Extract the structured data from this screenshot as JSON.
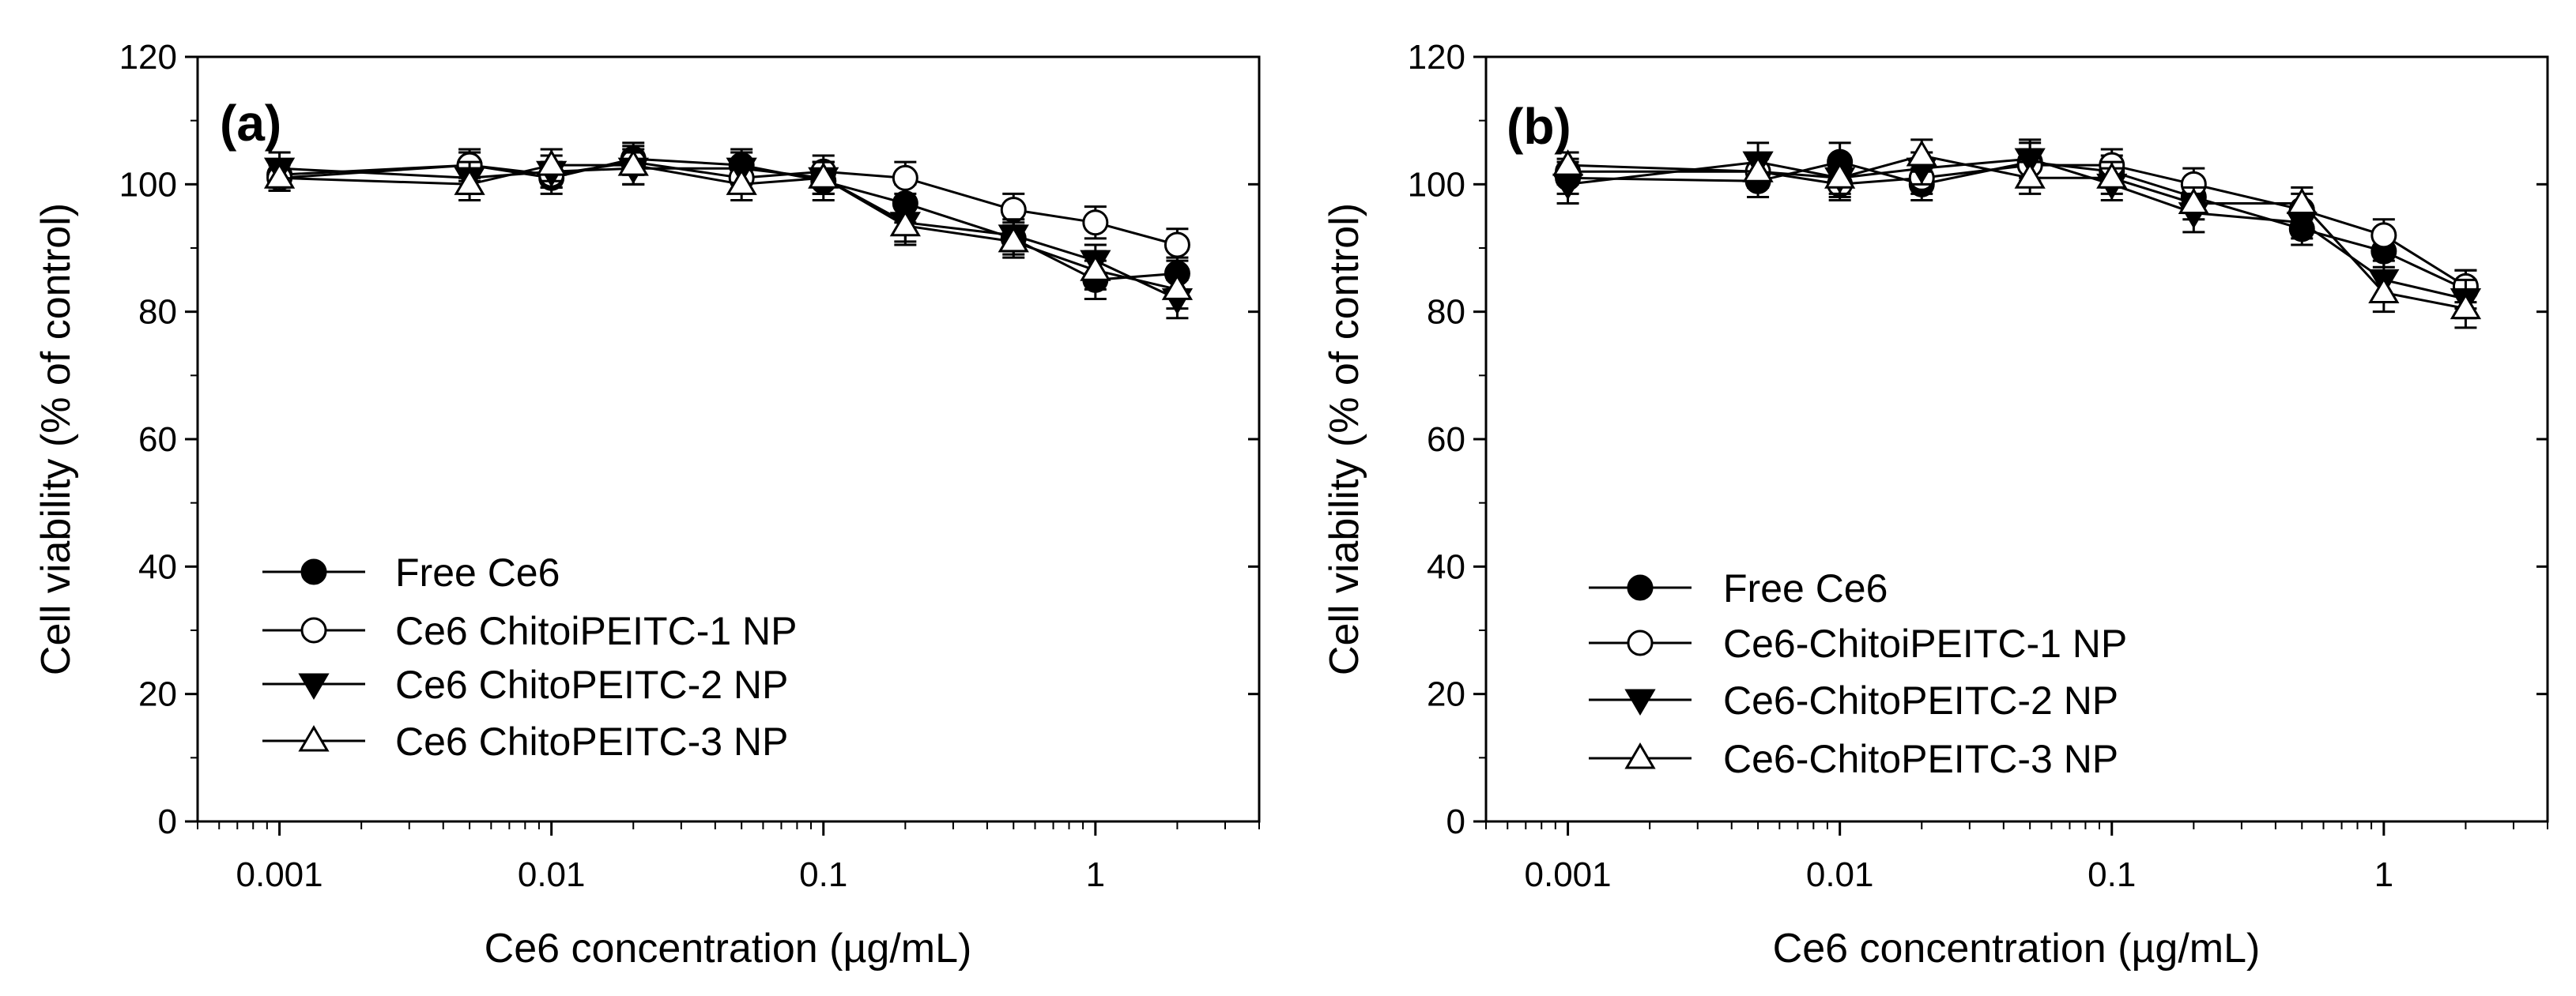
{
  "chart_data": [
    {
      "type": "line",
      "panel_label": "(a)",
      "xlabel_prefix": "Ce6 concentration (",
      "xlabel_unit": "µg/mL",
      "xlabel_suffix": ")",
      "ylabel": "Cell viability (% of control)",
      "xscale": "log",
      "xlim": [
        0.0005,
        4
      ],
      "ylim": [
        0,
        120
      ],
      "x_ticks": [
        0.001,
        0.01,
        0.1,
        1
      ],
      "x_tick_labels": [
        "0.001",
        "0.01",
        "0.1",
        "1"
      ],
      "y_ticks": [
        0,
        20,
        40,
        60,
        80,
        100,
        120
      ],
      "y_tick_labels": [
        "0",
        "20",
        "40",
        "60",
        "80",
        "100",
        "120"
      ],
      "legend_position": "lower-left",
      "x": [
        0.001,
        0.005,
        0.01,
        0.02,
        0.05,
        0.1,
        0.2,
        0.5,
        1,
        2
      ],
      "series": [
        {
          "name": "Free Ce6",
          "marker": "filled-circle",
          "values": [
            101.5,
            103,
            101,
            104,
            103,
            100.5,
            97,
            91.5,
            85,
            86
          ],
          "errors": [
            2,
            2.5,
            2.5,
            2.5,
            2.5,
            3,
            3,
            2.5,
            3,
            2.5
          ]
        },
        {
          "name": "Ce6 ChitoiPEITC-1 NP",
          "marker": "open-circle",
          "values": [
            101,
            103,
            101.5,
            103.5,
            101,
            102,
            101,
            96,
            94,
            90.5
          ],
          "errors": [
            2,
            2,
            2,
            2,
            2,
            2.5,
            2.5,
            2.5,
            2.5,
            2.5
          ]
        },
        {
          "name": "Ce6 ChitoPEITC-2 NP",
          "marker": "filled-triangle-down",
          "values": [
            102.5,
            101,
            102,
            102.5,
            102.5,
            101,
            94,
            92,
            88,
            82
          ],
          "errors": [
            2.5,
            2.5,
            2.5,
            2.5,
            2.5,
            2.5,
            3,
            2.5,
            2.5,
            3
          ]
        },
        {
          "name": "Ce6 ChitoPEITC-3 NP",
          "marker": "open-triangle-up",
          "values": [
            101,
            100,
            103,
            103,
            100,
            101,
            93.5,
            91,
            86.5,
            83.5
          ],
          "errors": [
            2,
            2.5,
            2.5,
            3,
            2.5,
            2.5,
            3,
            2.5,
            3,
            3
          ]
        }
      ]
    },
    {
      "type": "line",
      "panel_label": "(b)",
      "xlabel_prefix": "Ce6 concentration (",
      "xlabel_unit": "µg/mL",
      "xlabel_suffix": ")",
      "ylabel": "Cell viability (% of control)",
      "xscale": "log",
      "xlim": [
        0.0005,
        4
      ],
      "ylim": [
        0,
        120
      ],
      "x_ticks": [
        0.001,
        0.01,
        0.1,
        1
      ],
      "x_tick_labels": [
        "0.001",
        "0.01",
        "0.1",
        "1"
      ],
      "y_ticks": [
        0,
        20,
        40,
        60,
        80,
        100,
        120
      ],
      "y_tick_labels": [
        "0",
        "20",
        "40",
        "60",
        "80",
        "100",
        "120"
      ],
      "legend_position": "lower-left",
      "x": [
        0.001,
        0.005,
        0.01,
        0.02,
        0.05,
        0.1,
        0.2,
        0.5,
        1,
        2
      ],
      "series": [
        {
          "name": "Free Ce6",
          "marker": "filled-circle",
          "values": [
            101,
            100.5,
            103.5,
            100,
            103.5,
            102,
            98,
            93,
            89.5,
            83.5
          ],
          "errors": [
            2.5,
            2.5,
            3,
            2.5,
            3,
            2.5,
            2.5,
            2.5,
            2.5,
            3
          ]
        },
        {
          "name": "Ce6-ChitoiPEITC-1 NP",
          "marker": "open-circle",
          "values": [
            102,
            102,
            100,
            101,
            103,
            103,
            100,
            96,
            92,
            84
          ],
          "errors": [
            2,
            2,
            2.5,
            2.5,
            2.5,
            2.5,
            2.5,
            2.5,
            2.5,
            2.5
          ]
        },
        {
          "name": "Ce6-ChitoPEITC-2 NP",
          "marker": "filled-triangle-down",
          "values": [
            100,
            103.5,
            101,
            102.5,
            104,
            100,
            95.5,
            94,
            85,
            82
          ],
          "errors": [
            3,
            3,
            3,
            2.5,
            3,
            2.5,
            3,
            2.5,
            3,
            3
          ]
        },
        {
          "name": "Ce6-ChitoPEITC-3 NP",
          "marker": "open-triangle-up",
          "values": [
            103,
            102,
            101,
            104.5,
            101,
            101,
            97,
            97,
            83,
            80.5
          ],
          "errors": [
            2,
            2.5,
            2.5,
            2.5,
            2.5,
            2.5,
            2.5,
            2.5,
            3,
            3
          ]
        }
      ]
    }
  ]
}
